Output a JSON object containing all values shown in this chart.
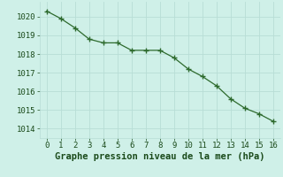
{
  "x": [
    0,
    1,
    2,
    3,
    4,
    5,
    6,
    7,
    8,
    9,
    10,
    11,
    12,
    13,
    14,
    15,
    16
  ],
  "y": [
    1020.3,
    1019.9,
    1019.4,
    1018.8,
    1018.6,
    1018.6,
    1018.2,
    1018.2,
    1018.2,
    1017.8,
    1017.2,
    1016.8,
    1016.3,
    1015.6,
    1015.1,
    1014.8,
    1014.4
  ],
  "xlabel": "Graphe pression niveau de la mer (hPa)",
  "xlim": [
    -0.5,
    16.5
  ],
  "ylim": [
    1013.5,
    1020.8
  ],
  "yticks": [
    1014,
    1015,
    1016,
    1017,
    1018,
    1019,
    1020
  ],
  "xticks": [
    0,
    1,
    2,
    3,
    4,
    5,
    6,
    7,
    8,
    9,
    10,
    11,
    12,
    13,
    14,
    15,
    16
  ],
  "line_color": "#2d6a2d",
  "marker_color": "#2d6a2d",
  "bg_color": "#cff0e8",
  "grid_color": "#b8ddd6",
  "xlabel_color": "#1a4a1a",
  "tick_color": "#1a4a1a",
  "xlabel_fontsize": 7.5,
  "tick_fontsize": 6.5
}
